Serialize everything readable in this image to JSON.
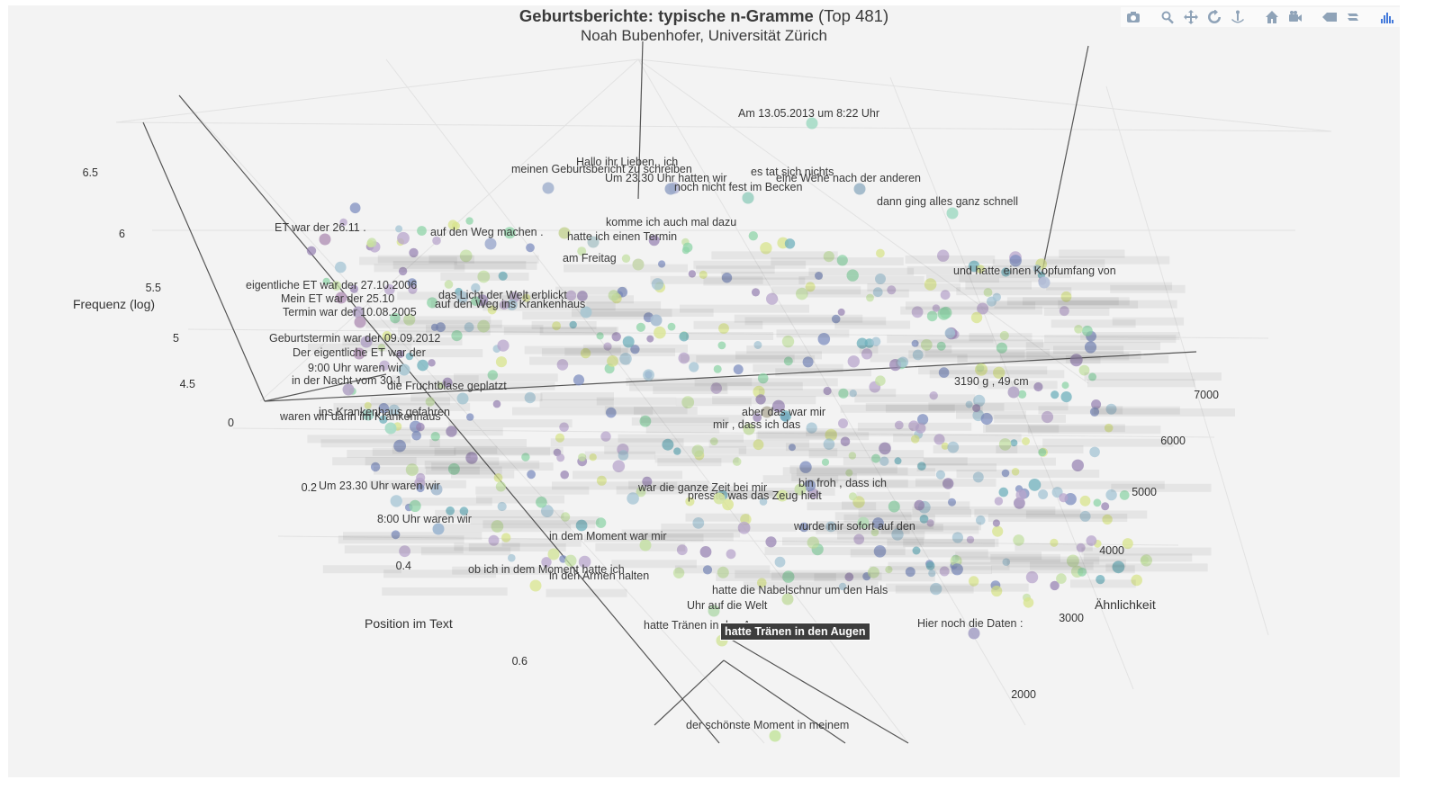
{
  "chart_data": {
    "type": "scatter3d",
    "title": "Geburtsberichte: typische n-Gramme",
    "title_suffix": "(Top 481)",
    "subtitle": "Noah Bubenhofer, Universität Zürich",
    "axes": {
      "x": {
        "title": "Position im Text",
        "ticks": [
          "0",
          "0.2",
          "0.4",
          "0.6"
        ],
        "range": [
          0,
          0.7
        ]
      },
      "y": {
        "title": "Ähnlichkeit",
        "ticks": [
          "2000",
          "3000",
          "4000",
          "5000",
          "6000",
          "7000"
        ],
        "range": [
          1500,
          7500
        ]
      },
      "z": {
        "title": "Frequenz (log)",
        "ticks": [
          "4.5",
          "5",
          "5.5",
          "6",
          "6.5"
        ],
        "range": [
          4.3,
          6.7
        ]
      }
    },
    "grid": true,
    "colorscale": [
      "#440154",
      "#3b528b",
      "#21918c",
      "#5ec962",
      "#fde725"
    ],
    "hover_label": "hatte Tränen in den Augen",
    "labeled_points": [
      {
        "text": "Am 13.05.2013 um 8:22 Uhr",
        "color": "#a6dcc6"
      },
      {
        "text": "Hallo ihr Lieben , ich",
        "color": "#b6b8d4"
      },
      {
        "text": "meinen Geburtsbericht zu schreiben",
        "color": "#a7b6d0"
      },
      {
        "text": "es tat sich nichts",
        "color": "#b2d6c6"
      },
      {
        "text": "Um 23.30 Uhr hatten wir",
        "color": "#9aa9c9"
      },
      {
        "text": "noch nicht fest im Becken",
        "color": "#a4d4c8"
      },
      {
        "text": "eine Wehe nach der anderen",
        "color": "#9cb6c8"
      },
      {
        "text": "dann ging alles ganz schnell",
        "color": "#a6dcc6"
      },
      {
        "text": "ET war der 26.11 .",
        "color": "#b89cbc"
      },
      {
        "text": "komme ich auch mal dazu",
        "color": "#c9d69c"
      },
      {
        "text": "auf den Weg machen .",
        "color": "#a4b0d0"
      },
      {
        "text": "hatte ich einen Termin",
        "color": "#b2c9cc"
      },
      {
        "text": "am Freitag",
        "color": "#c6d6ae"
      },
      {
        "text": "und hatte einen Kopfumfang von",
        "color": "#b4c0d8"
      },
      {
        "text": "eigentliche ET war der 27.10.2006",
        "color": "#b89cbc"
      },
      {
        "text": "Mein ET war der 25.10",
        "color": "#b4a6c6"
      },
      {
        "text": "Termin war der 10.08.2005",
        "color": "#b89cbc"
      },
      {
        "text": "das Licht der Welt erblickt",
        "color": "#a8c6d2"
      },
      {
        "text": "auf den Weg ins Krankenhaus",
        "color": "#a8bed2"
      },
      {
        "text": "3190 g , 49 cm",
        "color": "#b4a6c6"
      },
      {
        "text": "Geburtstermin war der 09.09.2012",
        "color": "#b4a6c6"
      },
      {
        "text": "Der eigentliche ET war der",
        "color": "#b89cbc"
      },
      {
        "text": "9:00 Uhr waren wir",
        "color": "#a8c6d2"
      },
      {
        "text": "in der Nacht vom 30.1",
        "color": "#b4a6c6"
      },
      {
        "text": "die Fruchtblase geplatzt",
        "color": "#a8c6d2"
      },
      {
        "text": "ins Krankenhaus gefahren",
        "color": "#a4d4c8"
      },
      {
        "text": "waren wir dann im Krankenhaus",
        "color": "#a6dcc6"
      },
      {
        "text": "Um 23.30 Uhr waren wir",
        "color": "#a8bed2"
      },
      {
        "text": "8:00 Uhr waren wir",
        "color": "#9cb6d0"
      },
      {
        "text": "aber das war mir",
        "color": "#b8b4a4"
      },
      {
        "text": "mir , dass ich das",
        "color": "#c8dea8"
      },
      {
        "text": "bin froh , dass ich",
        "color": "#c8dea8"
      },
      {
        "text": "presste was das Zeug hielt",
        "color": "#d6e6a4"
      },
      {
        "text": "war die ganze Zeit bei mir",
        "color": "#d6e6a4"
      },
      {
        "text": "wurde mir sofort auf den",
        "color": "#b6dcb8"
      },
      {
        "text": "in dem Moment war mir",
        "color": "#c6e0a8"
      },
      {
        "text": "ob ich in dem Moment hatte ich",
        "color": "#d6e6a4"
      },
      {
        "text": "in den Armen halten",
        "color": "#dee8a0"
      },
      {
        "text": "hatte die Nabelschnur um den Hals",
        "color": "#c8dea8"
      },
      {
        "text": "Uhr auf die Welt",
        "color": "#b8dcb4"
      },
      {
        "text": "Hier noch die Daten :",
        "color": "#a8a4c8"
      },
      {
        "text": "hatte Tränen in den Augen",
        "color": "#d6e6a4"
      },
      {
        "text": "der schönste Moment in meinem",
        "color": "#c8e6a4"
      }
    ]
  }
}
